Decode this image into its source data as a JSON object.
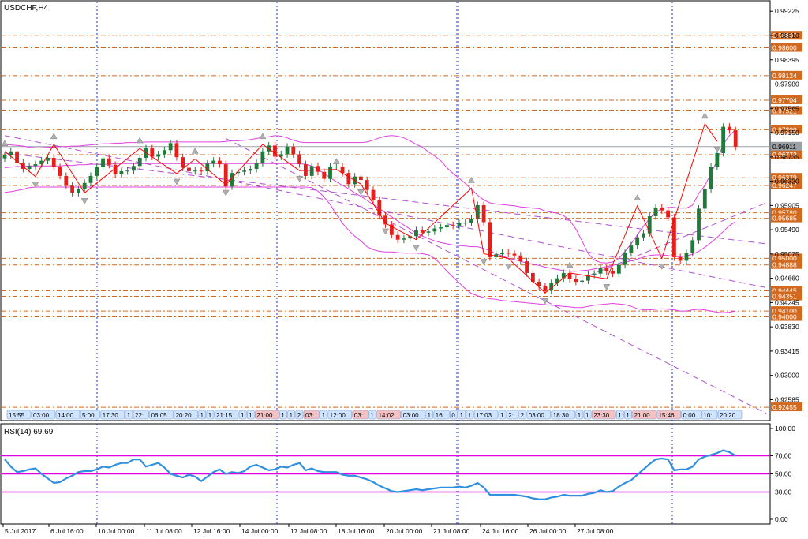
{
  "chart_title": "USDCHF,H4",
  "rsi_title": "RSI(14) 69.69",
  "current_price": "0.96911",
  "colors": {
    "bull": "#1f7a3c",
    "bear": "#e3201b",
    "zigzag": "#ff0000",
    "bands": "#e040e0",
    "levels": "#d2691e",
    "trend": "#b050d0",
    "rsi": "#3090e0",
    "rsi_levels": "#e000e0",
    "grid": "#2233cc"
  },
  "chart_data": [
    {
      "type": "candlestick",
      "title": "USDCHF,H4",
      "ylim": [
        0.9224,
        0.9939
      ],
      "price_ticks": [
        "0.99225",
        "0.98810",
        "0.98395",
        "0.97980",
        "0.97565",
        "0.97150",
        "0.96735",
        "0.96320",
        "0.95905",
        "0.95490",
        "0.95075",
        "0.94660",
        "0.94245",
        "0.93830",
        "0.93415",
        "0.93000",
        "0.92585"
      ],
      "level_labels": [
        "0.98807",
        "0.98600",
        "0.98124",
        "0.97704",
        "0.97521",
        "0.97200",
        "0.96772",
        "0.96379",
        "0.96247",
        "0.95780",
        "0.95685",
        "0.95000",
        "0.94888",
        "0.94445",
        "0.94351",
        "0.94100",
        "0.94000",
        "0.92455"
      ],
      "levels": [
        0.98807,
        0.986,
        0.98124,
        0.97704,
        0.97521,
        0.972,
        0.96772,
        0.96379,
        0.96247,
        0.9578,
        0.95685,
        0.95,
        0.94888,
        0.94445,
        0.94351,
        0.941,
        0.94,
        0.92455
      ],
      "current_price": 0.96911,
      "x_labels": [
        "5 Jul 2017",
        "6 Jul 16:00",
        "10 Jul 00:00",
        "11 Jul 08:00",
        "12 Jul 16:00",
        "14 Jul 00:00",
        "17 Jul 08:00",
        "18 Jul 16:00",
        "20 Jul 00:00",
        "21 Jul 08:00",
        "24 Jul 16:00",
        "26 Jul 00:00",
        "27 Jul 08:00"
      ],
      "time_tags": [
        "15:55",
        "03:00",
        "14:00",
        "5:00",
        "17:30",
        "1",
        "22:",
        "06:05",
        "20:20",
        "1",
        "1",
        "21:15",
        "1",
        "1",
        "21:00",
        "1",
        "1",
        "2",
        "03:",
        "1",
        "12:00",
        "03:",
        "1",
        "14:02",
        "03:00",
        "1",
        "16:",
        "0",
        "1",
        "1",
        "17:03",
        "1",
        "2:",
        "2",
        "03:00",
        "18:30",
        "1",
        "1",
        "23:30",
        "1",
        "1",
        "21:00",
        "15:46",
        "0:00",
        "10:",
        "20:20"
      ],
      "close": [
        0.9676,
        0.9683,
        0.9663,
        0.9653,
        0.9658,
        0.9661,
        0.9667,
        0.9672,
        0.9656,
        0.9641,
        0.9624,
        0.9612,
        0.9618,
        0.9629,
        0.9641,
        0.9656,
        0.9671,
        0.966,
        0.9644,
        0.9649,
        0.965,
        0.9658,
        0.9672,
        0.9688,
        0.9674,
        0.9678,
        0.9685,
        0.9697,
        0.9673,
        0.9655,
        0.9649,
        0.965,
        0.9649,
        0.9662,
        0.9667,
        0.9661,
        0.9623,
        0.9646,
        0.9648,
        0.965,
        0.9653,
        0.9663,
        0.9683,
        0.9693,
        0.9674,
        0.9678,
        0.9691,
        0.9678,
        0.9661,
        0.9641,
        0.9658,
        0.9648,
        0.9636,
        0.9657,
        0.9657,
        0.9646,
        0.9627,
        0.964,
        0.9634,
        0.9617,
        0.9599,
        0.9573,
        0.9558,
        0.954,
        0.9532,
        0.9534,
        0.9538,
        0.9548,
        0.9544,
        0.9546,
        0.9551,
        0.9553,
        0.9557,
        0.9556,
        0.956,
        0.9561,
        0.9568,
        0.9591,
        0.9562,
        0.9502,
        0.9507,
        0.951,
        0.9508,
        0.9505,
        0.9495,
        0.9475,
        0.946,
        0.9452,
        0.9445,
        0.9458,
        0.9466,
        0.9475,
        0.9465,
        0.946,
        0.9462,
        0.9472,
        0.9474,
        0.9483,
        0.9478,
        0.9474,
        0.9489,
        0.9509,
        0.9522,
        0.9536,
        0.9543,
        0.9572,
        0.9587,
        0.9582,
        0.957,
        0.9502,
        0.9496,
        0.9509,
        0.9531,
        0.9585,
        0.9618,
        0.9657,
        0.968,
        0.9725,
        0.9719,
        0.9691
      ],
      "ohlc_note": "",
      "bands": {
        "upper": [
          0.9695,
          0.9694,
          0.9693,
          0.9692,
          0.969,
          0.9689,
          0.9689,
          0.969,
          0.969,
          0.9691,
          0.9691,
          0.9692,
          0.9692,
          0.9693,
          0.9694,
          0.9695,
          0.9696,
          0.9696,
          0.9697,
          0.9697,
          0.9698,
          0.9698,
          0.9698,
          0.9699,
          0.9699,
          0.9699,
          0.9699,
          0.9699,
          0.9699,
          0.9699,
          0.9699,
          0.9699,
          0.9699,
          0.9699,
          0.9699,
          0.9699,
          0.97,
          0.9701,
          0.9701,
          0.9702,
          0.9703,
          0.9705,
          0.9707,
          0.9708,
          0.971,
          0.9709,
          0.9706,
          0.9702,
          0.9699,
          0.9698,
          0.9698,
          0.9698,
          0.9698,
          0.9698,
          0.9698,
          0.9698,
          0.9698,
          0.9698,
          0.9698,
          0.9699,
          0.9702,
          0.9706,
          0.9709,
          0.971,
          0.9709,
          0.9706,
          0.9701,
          0.9695,
          0.969,
          0.9682,
          0.9675,
          0.9667,
          0.9655,
          0.9645,
          0.9637,
          0.9628,
          0.9618,
          0.9608,
          0.96,
          0.9595,
          0.9593,
          0.9592,
          0.9591,
          0.959,
          0.9588,
          0.9587,
          0.9586,
          0.9585,
          0.9581,
          0.9579,
          0.9577,
          0.9573,
          0.9565,
          0.955,
          0.953,
          0.9508,
          0.9497,
          0.9493,
          0.9492,
          0.9494,
          0.95,
          0.9512,
          0.9525,
          0.954,
          0.9555,
          0.9568,
          0.9579,
          0.9585,
          0.9587,
          0.9587,
          0.9586,
          0.9586,
          0.9591,
          0.9611,
          0.9625,
          0.9645,
          0.9668,
          0.9695,
          0.971,
          0.972
        ],
        "middle": [
          0.9655,
          0.9656,
          0.9657,
          0.9657,
          0.9658,
          0.9658,
          0.9658,
          0.9658,
          0.9658,
          0.9658,
          0.9659,
          0.9659,
          0.966,
          0.966,
          0.9661,
          0.9661,
          0.9661,
          0.9661,
          0.9662,
          0.9662,
          0.9662,
          0.9662,
          0.9662,
          0.9662,
          0.9662,
          0.9662,
          0.9662,
          0.9662,
          0.9662,
          0.9662,
          0.9662,
          0.9662,
          0.9662,
          0.9662,
          0.9662,
          0.9662,
          0.9662,
          0.9662,
          0.9662,
          0.9662,
          0.9662,
          0.9662,
          0.9662,
          0.9662,
          0.9662,
          0.9662,
          0.9662,
          0.9662,
          0.9662,
          0.9661,
          0.9658,
          0.9652,
          0.9645,
          0.9638,
          0.9631,
          0.9625,
          0.9619,
          0.9612,
          0.9606,
          0.9599,
          0.9592,
          0.9585,
          0.9578,
          0.9571,
          0.9564,
          0.9557,
          0.955,
          0.9543,
          0.9538,
          0.9534,
          0.953,
          0.9527,
          0.9525,
          0.9523,
          0.9522,
          0.9521,
          0.952,
          0.952,
          0.9517,
          0.9513,
          0.9508,
          0.9504,
          0.95,
          0.9498,
          0.9495,
          0.9492,
          0.949,
          0.9488,
          0.9485,
          0.9483,
          0.9481,
          0.9479,
          0.9478,
          0.9478,
          0.9479,
          0.948,
          0.9482,
          0.9484,
          0.9486,
          0.9488,
          0.949,
          0.9493,
          0.9496,
          0.9499,
          0.9502,
          0.9505,
          0.9506,
          0.9506,
          0.9505,
          0.9503,
          0.9503,
          0.9504,
          0.9507,
          0.9512,
          0.9519,
          0.9527,
          0.9536,
          0.9546,
          0.9556,
          0.9563
        ],
        "lower": [
          0.9613,
          0.9614,
          0.9616,
          0.9618,
          0.9621,
          0.9622,
          0.9622,
          0.9622,
          0.9622,
          0.9622,
          0.9622,
          0.9622,
          0.9622,
          0.9622,
          0.9622,
          0.9622,
          0.9622,
          0.9622,
          0.9622,
          0.9622,
          0.9622,
          0.9622,
          0.9622,
          0.9622,
          0.9622,
          0.9622,
          0.9622,
          0.9622,
          0.9622,
          0.9622,
          0.9622,
          0.9622,
          0.9622,
          0.9622,
          0.9622,
          0.9622,
          0.9622,
          0.9622,
          0.9622,
          0.9622,
          0.9622,
          0.9622,
          0.9622,
          0.9622,
          0.9622,
          0.9622,
          0.9622,
          0.9622,
          0.9622,
          0.9622,
          0.9621,
          0.9615,
          0.9605,
          0.9592,
          0.9575,
          0.956,
          0.9548,
          0.9538,
          0.953,
          0.952,
          0.9515,
          0.9512,
          0.9511,
          0.9511,
          0.951,
          0.9509,
          0.9509,
          0.9509,
          0.9508,
          0.9506,
          0.95,
          0.949,
          0.9478,
          0.9468,
          0.9458,
          0.9448,
          0.944,
          0.9436,
          0.9433,
          0.9431,
          0.943,
          0.9428,
          0.9427,
          0.9426,
          0.9425,
          0.9424,
          0.9423,
          0.9422,
          0.9421,
          0.942,
          0.9419,
          0.9418,
          0.9417,
          0.9416,
          0.9416,
          0.9418,
          0.942,
          0.9421,
          0.9422,
          0.9423,
          0.9422,
          0.9421,
          0.9418,
          0.9414,
          0.9412,
          0.9412,
          0.9413,
          0.9414,
          0.9413,
          0.9412,
          0.941,
          0.941,
          0.9412,
          0.9413,
          0.9412,
          0.941,
          0.9408,
          0.9407,
          0.9408,
          0.941
        ]
      },
      "zigzag": [
        [
          0,
          0.9683
        ],
        [
          5,
          0.964
        ],
        [
          8,
          0.9695
        ],
        [
          13,
          0.9612
        ],
        [
          22,
          0.9688
        ],
        [
          28,
          0.9645
        ],
        [
          31,
          0.967
        ],
        [
          36,
          0.9626
        ],
        [
          42,
          0.9695
        ],
        [
          48,
          0.965
        ],
        [
          54,
          0.9652
        ],
        [
          58,
          0.9627
        ],
        [
          62,
          0.956
        ],
        [
          67,
          0.9532
        ],
        [
          76,
          0.962
        ],
        [
          78,
          0.9508
        ],
        [
          82,
          0.95
        ],
        [
          88,
          0.9441
        ],
        [
          92,
          0.9475
        ],
        [
          98,
          0.9465
        ],
        [
          103,
          0.959
        ],
        [
          107,
          0.95
        ],
        [
          114,
          0.973
        ],
        [
          116,
          0.97
        ]
      ],
      "trendlines": [
        [
          [
            0,
            0.968
          ],
          [
            124,
            0.9525
          ]
        ],
        [
          [
            0,
            0.971
          ],
          [
            124,
            0.945
          ]
        ],
        [
          [
            36,
            0.9705
          ],
          [
            124,
            0.9235
          ]
        ],
        [
          [
            95,
            0.947
          ],
          [
            124,
            0.9595
          ]
        ]
      ]
    },
    {
      "type": "line",
      "title": "RSI(14) 69.69",
      "ylim": [
        0,
        100
      ],
      "y_ticks": [
        "100.00",
        "70.00",
        "50.00",
        "30.00",
        "0.00"
      ],
      "levels": [
        70,
        50,
        30
      ],
      "values": [
        66,
        58,
        52,
        53,
        55,
        56,
        50,
        45,
        40,
        41,
        45,
        48,
        52,
        53,
        53,
        55,
        58,
        57,
        60,
        62,
        62,
        66,
        66,
        58,
        60,
        62,
        57,
        50,
        48,
        46,
        49,
        47,
        42,
        47,
        52,
        55,
        50,
        52,
        51,
        53,
        58,
        60,
        57,
        54,
        55,
        58,
        57,
        60,
        62,
        54,
        56,
        53,
        52,
        52,
        52,
        49,
        48,
        48,
        46,
        44,
        41,
        37,
        34,
        31,
        30,
        31,
        32,
        33,
        32,
        33,
        34,
        35,
        35,
        35,
        36,
        35,
        37,
        40,
        35,
        27,
        27,
        27,
        27,
        27,
        26,
        25,
        23,
        22,
        22,
        24,
        25,
        27,
        26,
        26,
        26,
        28,
        29,
        32,
        30,
        31,
        36,
        40,
        43,
        49,
        55,
        61,
        66,
        67,
        66,
        54,
        55,
        55,
        58,
        66,
        69,
        71,
        73,
        76,
        74,
        70
      ]
    }
  ]
}
